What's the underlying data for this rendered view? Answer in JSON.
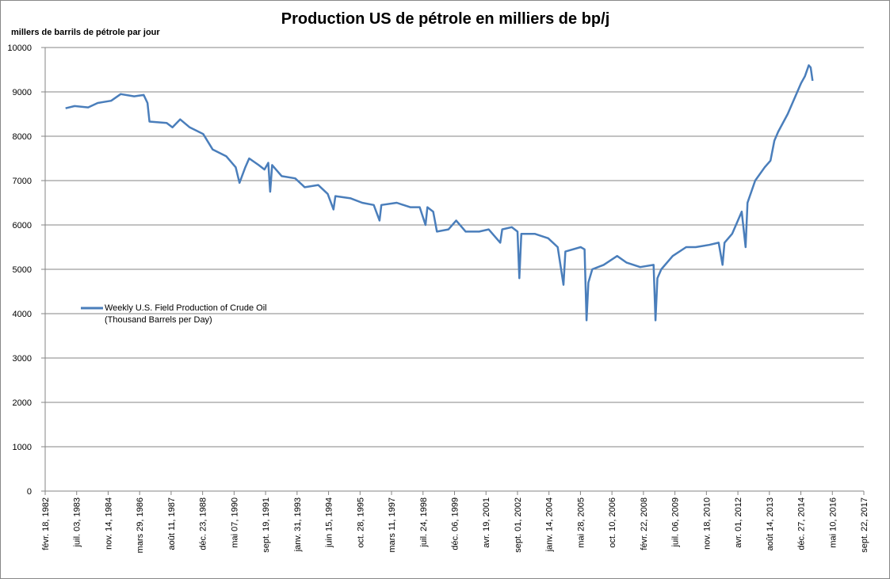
{
  "chart_data": {
    "type": "line",
    "title": "Production US de pétrole en milliers de bp/j",
    "y_label": "millers de barrils de pétrole par jour",
    "x": [
      "1983-01-07",
      "1983-06-01",
      "1984-01-01",
      "1984-06-01",
      "1985-01-01",
      "1985-06-01",
      "1986-01-01",
      "1986-06-01",
      "1986-08-01",
      "1986-09-01",
      "1987-06-01",
      "1987-09-01",
      "1988-01-01",
      "1988-06-01",
      "1989-01-01",
      "1989-06-01",
      "1990-01-01",
      "1990-06-01",
      "1990-08-01",
      "1990-11-01",
      "1991-01-01",
      "1991-06-01",
      "1991-09-01",
      "1991-11-01",
      "1991-12-01",
      "1992-01-01",
      "1992-06-01",
      "1993-01-01",
      "1993-06-01",
      "1994-01-01",
      "1994-06-01",
      "1994-09-01",
      "1994-10-01",
      "1995-06-01",
      "1995-12-01",
      "1996-06-01",
      "1996-09-01",
      "1996-10-01",
      "1997-06-01",
      "1998-01-01",
      "1998-06-01",
      "1998-09-01",
      "1998-10-01",
      "1999-01-01",
      "1999-03-01",
      "1999-09-01",
      "2000-01-01",
      "2000-06-01",
      "2001-01-01",
      "2001-06-01",
      "2001-12-01",
      "2002-01-01",
      "2002-06-01",
      "2002-09-01",
      "2002-10-01",
      "2002-11-01",
      "2003-06-01",
      "2004-01-01",
      "2004-06-01",
      "2004-09-01",
      "2004-10-01",
      "2005-06-01",
      "2005-08-01",
      "2005-09-01",
      "2005-10-01",
      "2005-12-01",
      "2006-06-01",
      "2007-01-01",
      "2007-06-01",
      "2008-01-01",
      "2008-08-01",
      "2008-09-01",
      "2008-10-01",
      "2008-12-01",
      "2009-06-01",
      "2010-01-01",
      "2010-06-01",
      "2011-01-01",
      "2011-06-01",
      "2011-08-01",
      "2011-09-01",
      "2012-01-01",
      "2012-06-01",
      "2012-08-01",
      "2012-09-01",
      "2013-01-01",
      "2013-06-01",
      "2013-09-01",
      "2013-11-01",
      "2014-01-01",
      "2014-06-01",
      "2014-10-01",
      "2015-01-01",
      "2015-03-01",
      "2015-05-01",
      "2015-06-01",
      "2015-07-01"
    ],
    "series": [
      {
        "name": "Weekly U.S. Field Production of Crude Oil (Thousand Barrels per Day)",
        "color": "#4a7ebb",
        "values": [
          8630,
          8680,
          8650,
          8750,
          8800,
          8950,
          8900,
          8930,
          8750,
          8330,
          8300,
          8200,
          8380,
          8200,
          8050,
          7700,
          7550,
          7300,
          6950,
          7300,
          7500,
          7350,
          7250,
          7400,
          6750,
          7350,
          7100,
          7050,
          6850,
          6900,
          6700,
          6350,
          6650,
          6600,
          6500,
          6450,
          6100,
          6450,
          6500,
          6400,
          6400,
          6000,
          6400,
          6300,
          5850,
          5900,
          6100,
          5850,
          5850,
          5900,
          5600,
          5900,
          5950,
          5850,
          4800,
          5800,
          5800,
          5700,
          5500,
          4650,
          5400,
          5500,
          5450,
          3850,
          4700,
          5000,
          5100,
          5300,
          5150,
          5050,
          5100,
          3850,
          4800,
          5000,
          5300,
          5500,
          5500,
          5550,
          5600,
          5100,
          5600,
          5800,
          6300,
          5500,
          6500,
          7000,
          7300,
          7450,
          7900,
          8100,
          8500,
          8900,
          9200,
          9350,
          9600,
          9550,
          9250
        ]
      }
    ],
    "xlim": [
      "1982-02-18",
      "2017-09-22"
    ],
    "xticks": [
      {
        "value": "1982-02-18",
        "label": "févr. 18, 1982"
      },
      {
        "value": "1983-07-03",
        "label": "juil. 03, 1983"
      },
      {
        "value": "1984-11-14",
        "label": "nov. 14, 1984"
      },
      {
        "value": "1986-03-29",
        "label": "mars 29, 1986"
      },
      {
        "value": "1987-08-11",
        "label": "août 11, 1987"
      },
      {
        "value": "1988-12-23",
        "label": "déc. 23, 1988"
      },
      {
        "value": "1990-05-07",
        "label": "mai 07, 1990"
      },
      {
        "value": "1991-09-19",
        "label": "sept. 19, 1991"
      },
      {
        "value": "1993-01-31",
        "label": "janv. 31, 1993"
      },
      {
        "value": "1994-06-15",
        "label": "juin 15, 1994"
      },
      {
        "value": "1995-10-28",
        "label": "oct. 28, 1995"
      },
      {
        "value": "1997-03-11",
        "label": "mars 11, 1997"
      },
      {
        "value": "1998-07-24",
        "label": "juil. 24, 1998"
      },
      {
        "value": "1999-12-06",
        "label": "déc. 06, 1999"
      },
      {
        "value": "2001-04-19",
        "label": "avr. 19, 2001"
      },
      {
        "value": "2002-09-01",
        "label": "sept. 01, 2002"
      },
      {
        "value": "2004-01-14",
        "label": "janv. 14, 2004"
      },
      {
        "value": "2005-05-28",
        "label": "mai 28, 2005"
      },
      {
        "value": "2006-10-10",
        "label": "oct. 10, 2006"
      },
      {
        "value": "2008-02-22",
        "label": "févr. 22, 2008"
      },
      {
        "value": "2009-07-06",
        "label": "juil. 06, 2009"
      },
      {
        "value": "2010-11-18",
        "label": "nov. 18, 2010"
      },
      {
        "value": "2012-04-01",
        "label": "avr. 01, 2012"
      },
      {
        "value": "2013-08-14",
        "label": "août 14, 2013"
      },
      {
        "value": "2014-12-27",
        "label": "déc. 27, 2014"
      },
      {
        "value": "2016-05-10",
        "label": "mai 10, 2016"
      },
      {
        "value": "2017-09-22",
        "label": "sept. 22, 2017"
      }
    ],
    "ylim": [
      0,
      10000
    ],
    "yticks": [
      0,
      1000,
      2000,
      3000,
      4000,
      5000,
      6000,
      7000,
      8000,
      9000,
      10000
    ],
    "grid": true,
    "legend": "left"
  }
}
